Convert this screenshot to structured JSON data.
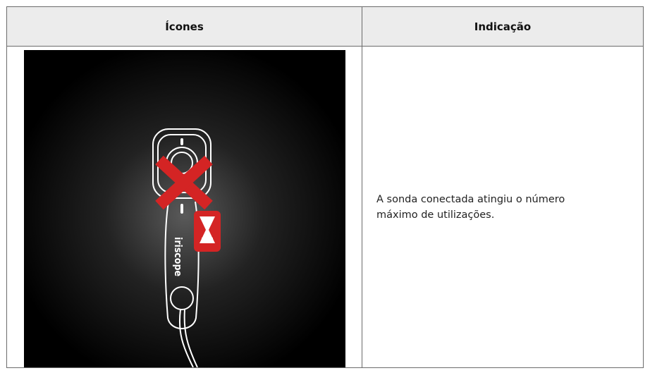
{
  "table": {
    "header": [
      "Ícones",
      "Indicação"
    ],
    "rows": [
      {
        "indication": "A sonda conectada atingiu o número máximo de utilizações.",
        "device_label": "iriscope"
      }
    ]
  }
}
